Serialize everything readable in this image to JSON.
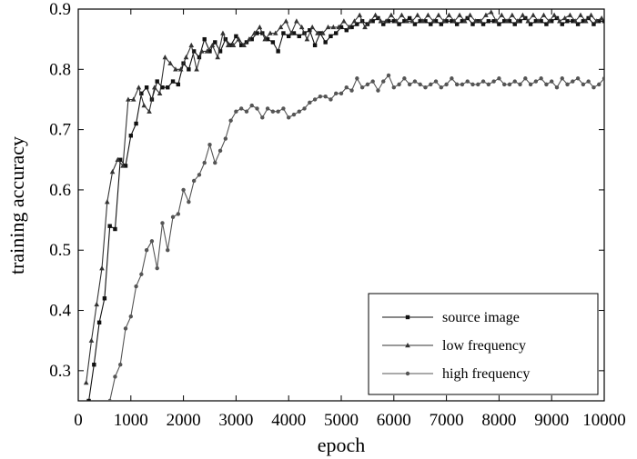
{
  "chart_data": {
    "type": "line",
    "xlabel": "epoch",
    "ylabel": "training accuracy",
    "xlim": [
      0,
      10000
    ],
    "ylim": [
      0.25,
      0.9
    ],
    "xticks": [
      0,
      1000,
      2000,
      3000,
      4000,
      5000,
      6000,
      7000,
      8000,
      9000,
      10000
    ],
    "yticks": [
      0.3,
      0.4,
      0.5,
      0.6,
      0.7,
      0.8,
      0.9
    ],
    "xtick_labels": [
      "0",
      "1000",
      "2000",
      "3000",
      "4000",
      "5000",
      "6000",
      "7000",
      "8000",
      "9000",
      "10000"
    ],
    "ytick_labels": [
      "0.3",
      "0.4",
      "0.5",
      "0.6",
      "0.7",
      "0.8",
      "0.9"
    ],
    "grid": false,
    "legend_position": "bottom-right",
    "series": [
      {
        "name": "source image",
        "marker": "square",
        "color": "#111111",
        "x": [
          200,
          300,
          400,
          500,
          600,
          700,
          800,
          900,
          1000,
          1100,
          1200,
          1300,
          1400,
          1500,
          1600,
          1700,
          1800,
          1900,
          2000,
          2100,
          2200,
          2300,
          2400,
          2500,
          2600,
          2700,
          2800,
          2900,
          3000,
          3100,
          3200,
          3300,
          3400,
          3500,
          3600,
          3700,
          3800,
          3900,
          4000,
          4100,
          4200,
          4300,
          4400,
          4500,
          4600,
          4700,
          4800,
          4900,
          5000,
          5100,
          5200,
          5300,
          5400,
          5500,
          5600,
          5700,
          5800,
          5900,
          6000,
          6100,
          6200,
          6300,
          6400,
          6500,
          6600,
          6700,
          6800,
          6900,
          7000,
          7100,
          7200,
          7300,
          7400,
          7500,
          7600,
          7700,
          7800,
          7900,
          8000,
          8100,
          8200,
          8300,
          8400,
          8500,
          8600,
          8700,
          8800,
          8900,
          9000,
          9100,
          9200,
          9300,
          9400,
          9500,
          9600,
          9700,
          9800,
          9900,
          10000
        ],
        "y": [
          0.25,
          0.31,
          0.38,
          0.42,
          0.54,
          0.535,
          0.65,
          0.64,
          0.69,
          0.71,
          0.76,
          0.77,
          0.75,
          0.78,
          0.77,
          0.77,
          0.78,
          0.775,
          0.81,
          0.8,
          0.83,
          0.82,
          0.85,
          0.83,
          0.845,
          0.83,
          0.85,
          0.84,
          0.855,
          0.84,
          0.845,
          0.85,
          0.86,
          0.86,
          0.85,
          0.845,
          0.83,
          0.86,
          0.855,
          0.86,
          0.855,
          0.86,
          0.865,
          0.84,
          0.86,
          0.845,
          0.855,
          0.86,
          0.87,
          0.865,
          0.87,
          0.875,
          0.88,
          0.875,
          0.88,
          0.885,
          0.875,
          0.88,
          0.88,
          0.875,
          0.88,
          0.885,
          0.875,
          0.88,
          0.88,
          0.875,
          0.88,
          0.875,
          0.88,
          0.88,
          0.875,
          0.88,
          0.885,
          0.875,
          0.88,
          0.875,
          0.88,
          0.88,
          0.875,
          0.88,
          0.88,
          0.875,
          0.88,
          0.885,
          0.875,
          0.88,
          0.88,
          0.875,
          0.88,
          0.885,
          0.875,
          0.88,
          0.88,
          0.875,
          0.88,
          0.885,
          0.875,
          0.88,
          0.88
        ]
      },
      {
        "name": "low frequency",
        "marker": "triangle",
        "color": "#333333",
        "x": [
          150,
          250,
          350,
          450,
          550,
          650,
          750,
          850,
          950,
          1050,
          1150,
          1250,
          1350,
          1450,
          1550,
          1650,
          1750,
          1850,
          1950,
          2050,
          2150,
          2250,
          2350,
          2450,
          2550,
          2650,
          2750,
          2850,
          2950,
          3050,
          3150,
          3250,
          3350,
          3450,
          3550,
          3650,
          3750,
          3850,
          3950,
          4050,
          4150,
          4250,
          4350,
          4450,
          4550,
          4650,
          4750,
          4850,
          4950,
          5050,
          5150,
          5250,
          5350,
          5450,
          5550,
          5650,
          5750,
          5850,
          5950,
          6050,
          6150,
          6250,
          6350,
          6450,
          6550,
          6650,
          6750,
          6850,
          6950,
          7050,
          7150,
          7250,
          7350,
          7450,
          7550,
          7650,
          7750,
          7850,
          7950,
          8050,
          8150,
          8250,
          8350,
          8450,
          8550,
          8650,
          8750,
          8850,
          8950,
          9050,
          9150,
          9250,
          9350,
          9450,
          9550,
          9650,
          9750,
          9850,
          9950
        ],
        "y": [
          0.28,
          0.35,
          0.41,
          0.47,
          0.58,
          0.63,
          0.65,
          0.64,
          0.75,
          0.75,
          0.77,
          0.74,
          0.73,
          0.77,
          0.76,
          0.82,
          0.81,
          0.8,
          0.8,
          0.82,
          0.84,
          0.8,
          0.83,
          0.83,
          0.84,
          0.82,
          0.86,
          0.84,
          0.84,
          0.85,
          0.84,
          0.85,
          0.86,
          0.87,
          0.85,
          0.86,
          0.86,
          0.87,
          0.88,
          0.86,
          0.88,
          0.87,
          0.85,
          0.87,
          0.86,
          0.86,
          0.87,
          0.87,
          0.87,
          0.88,
          0.87,
          0.88,
          0.89,
          0.87,
          0.88,
          0.89,
          0.88,
          0.88,
          0.89,
          0.88,
          0.89,
          0.88,
          0.88,
          0.89,
          0.88,
          0.89,
          0.88,
          0.89,
          0.88,
          0.89,
          0.88,
          0.89,
          0.88,
          0.89,
          0.88,
          0.88,
          0.89,
          0.895,
          0.88,
          0.89,
          0.88,
          0.89,
          0.88,
          0.89,
          0.88,
          0.89,
          0.88,
          0.89,
          0.88,
          0.89,
          0.88,
          0.885,
          0.89,
          0.88,
          0.89,
          0.88,
          0.89,
          0.88,
          0.885
        ]
      },
      {
        "name": "high frequency",
        "marker": "circle",
        "color": "#555555",
        "x": [
          600,
          700,
          800,
          900,
          1000,
          1100,
          1200,
          1300,
          1400,
          1500,
          1600,
          1700,
          1800,
          1900,
          2000,
          2100,
          2200,
          2300,
          2400,
          2500,
          2600,
          2700,
          2800,
          2900,
          3000,
          3100,
          3200,
          3300,
          3400,
          3500,
          3600,
          3700,
          3800,
          3900,
          4000,
          4100,
          4200,
          4300,
          4400,
          4500,
          4600,
          4700,
          4800,
          4900,
          5000,
          5100,
          5200,
          5300,
          5400,
          5500,
          5600,
          5700,
          5800,
          5900,
          6000,
          6100,
          6200,
          6300,
          6400,
          6500,
          6600,
          6700,
          6800,
          6900,
          7000,
          7100,
          7200,
          7300,
          7400,
          7500,
          7600,
          7700,
          7800,
          7900,
          8000,
          8100,
          8200,
          8300,
          8400,
          8500,
          8600,
          8700,
          8800,
          8900,
          9000,
          9100,
          9200,
          9300,
          9400,
          9500,
          9600,
          9700,
          9800,
          9900,
          10000
        ],
        "y": [
          0.25,
          0.29,
          0.31,
          0.37,
          0.39,
          0.44,
          0.46,
          0.5,
          0.515,
          0.47,
          0.545,
          0.5,
          0.555,
          0.56,
          0.6,
          0.58,
          0.615,
          0.625,
          0.645,
          0.675,
          0.645,
          0.665,
          0.685,
          0.715,
          0.73,
          0.735,
          0.73,
          0.74,
          0.735,
          0.72,
          0.735,
          0.73,
          0.73,
          0.735,
          0.72,
          0.725,
          0.73,
          0.735,
          0.745,
          0.75,
          0.755,
          0.755,
          0.75,
          0.76,
          0.76,
          0.77,
          0.765,
          0.785,
          0.77,
          0.775,
          0.78,
          0.765,
          0.78,
          0.79,
          0.77,
          0.775,
          0.785,
          0.775,
          0.78,
          0.775,
          0.77,
          0.775,
          0.78,
          0.77,
          0.775,
          0.785,
          0.775,
          0.775,
          0.78,
          0.775,
          0.775,
          0.78,
          0.775,
          0.78,
          0.785,
          0.775,
          0.775,
          0.78,
          0.775,
          0.785,
          0.775,
          0.78,
          0.785,
          0.775,
          0.78,
          0.77,
          0.785,
          0.775,
          0.78,
          0.785,
          0.775,
          0.78,
          0.77,
          0.775,
          0.785
        ]
      }
    ]
  }
}
